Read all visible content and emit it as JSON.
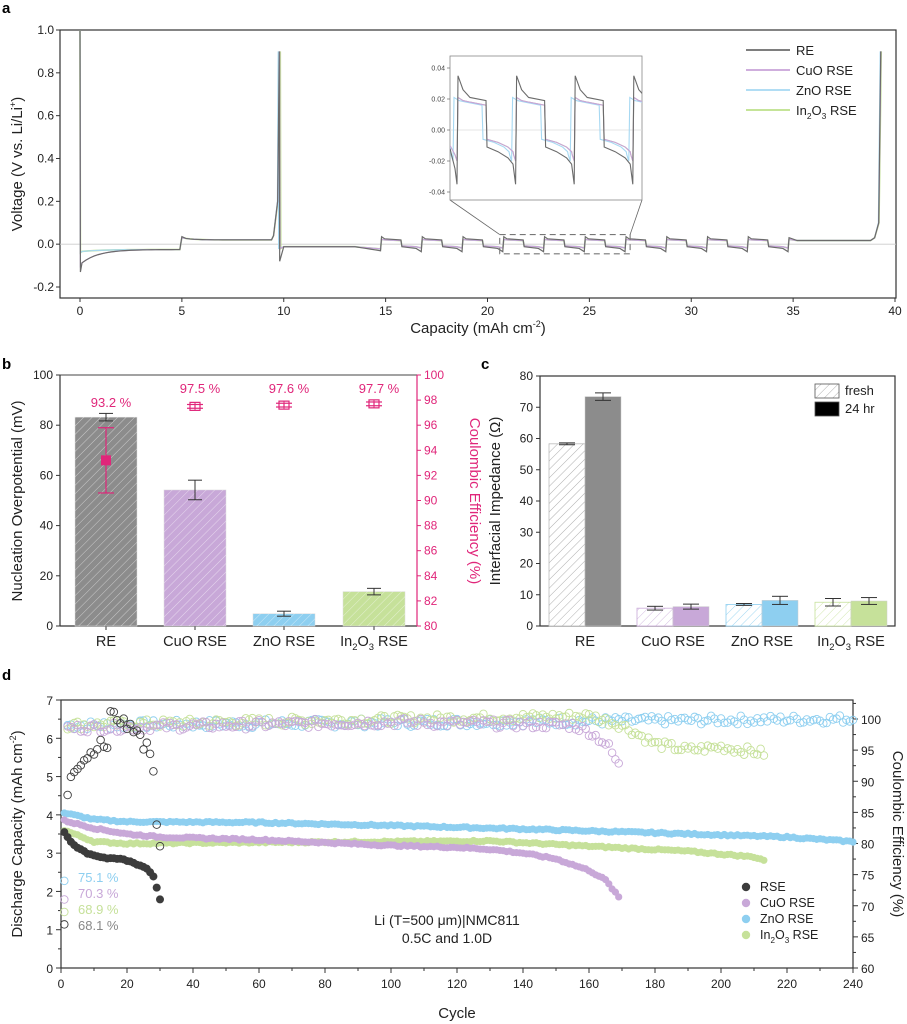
{
  "chart_data": [
    {
      "panel": "a",
      "type": "line",
      "xlabel": "Capacity (mAh cm-2)",
      "ylabel": "Voltage (V vs. Li/Li+)",
      "xlim": [
        -1,
        40
      ],
      "ylim": [
        -0.25,
        1.0
      ],
      "xticks": [
        0,
        5,
        10,
        15,
        20,
        25,
        30,
        35,
        40
      ],
      "yticks": [
        -0.2,
        0.0,
        0.2,
        0.4,
        0.6,
        0.8,
        1.0
      ],
      "ytick_labels": [
        "-0.2",
        "0.0",
        "0.2",
        "0.4",
        "0.6",
        "0.8",
        "1.0"
      ],
      "legend": {
        "placement": "top-right",
        "entries": [
          {
            "name": "RE",
            "color": "#6b6b6b"
          },
          {
            "name": "CuO RSE",
            "color": "#c8a2d8"
          },
          {
            "name": "ZnO RSE",
            "color": "#a6d8f2"
          },
          {
            "name": "In2O3 RSE",
            "color": "#bde08a"
          }
        ]
      },
      "profile_description": "Initial spike to 1.0 V at 0, plating at ~-0.03 V (RE dip to -0.13 V) until 5, stripping at ~+0.02 V until ~9.8 with spike to 0.9 V, plating until 14.8, then alternating 1 mAh cm-2 strip/plate steps between 14.8 and 34.8, then stripping until ~39.4 with spike to 0.9 V",
      "segments": [
        {
          "x": [
            0,
            5
          ],
          "v": -0.03,
          "RE_start": -0.13
        },
        {
          "x": [
            5,
            9.8
          ],
          "v": 0.02,
          "end_spike": 0.9
        },
        {
          "x": [
            9.8,
            14.8
          ],
          "v": -0.015
        },
        {
          "x": [
            14.8,
            34.8
          ],
          "alternating_v": [
            0.02,
            -0.01
          ],
          "step": 1.0
        },
        {
          "x": [
            34.8,
            39.4
          ],
          "v": 0.02,
          "end_spike": 0.9
        }
      ],
      "zoom_box": {
        "x": [
          20.6,
          27.0
        ],
        "y": [
          -0.045,
          0.045
        ]
      },
      "inset": {
        "yticks": [
          -0.04,
          -0.02,
          0.0,
          0.02,
          0.04
        ],
        "ytick_labels": [
          "-0.04",
          "-0.02",
          "0.00",
          "0.02",
          "0.04"
        ],
        "RE": {
          "strip_peak": 0.035,
          "strip_plateau": 0.02,
          "plate_plateau": -0.012,
          "plate_dip": -0.035
        },
        "others": {
          "strip_plateau": 0.018,
          "plate_plateau": -0.008,
          "plate_dip": -0.018
        }
      }
    },
    {
      "panel": "b",
      "type": "bar",
      "categories": [
        "RE",
        "CuO RSE",
        "ZnO RSE",
        "In2O3 RSE"
      ],
      "category_labels": [
        {
          "main": "RE",
          "sub": "",
          "tail": ""
        },
        {
          "main": "CuO RSE",
          "sub": "",
          "tail": ""
        },
        {
          "main": "ZnO RSE",
          "sub": "",
          "tail": ""
        },
        {
          "main": "In",
          "sub": "2",
          "mid": "O",
          "sub2": "3",
          "tail": " RSE"
        }
      ],
      "series": [
        {
          "name": "Nucleation Overpotential (mV)",
          "axis": "left",
          "values": [
            83.2,
            54.2,
            4.9,
            13.7
          ],
          "errors": [
            1.5,
            3.9,
            1.0,
            1.3
          ],
          "colors": [
            "#8c8c8c",
            "#c8a8d8",
            "#8ecff0",
            "#c6e19a"
          ]
        },
        {
          "name": "Coulombic Efficiency (%)",
          "axis": "right",
          "values": [
            93.2,
            97.5,
            97.6,
            97.7
          ],
          "errors": [
            2.6,
            0.15,
            0.15,
            0.15
          ],
          "color": "#e0267a",
          "data_labels": [
            "93.2 %",
            "97.5 %",
            "97.6 %",
            "97.7 %"
          ]
        }
      ],
      "ylabel": "Nucleation Overpotential (mV)",
      "y2label": "Coulombic Efficiency (%)",
      "ylim": [
        0,
        100
      ],
      "y2lim": [
        80,
        100
      ],
      "yticks": [
        0,
        20,
        40,
        60,
        80,
        100
      ],
      "y2ticks": [
        80,
        82,
        84,
        86,
        88,
        90,
        92,
        94,
        96,
        98,
        100
      ]
    },
    {
      "panel": "c",
      "type": "bar",
      "categories": [
        "RE",
        "CuO RSE",
        "ZnO RSE",
        "In2O3 RSE"
      ],
      "series": [
        {
          "name": "fresh",
          "values": [
            58.3,
            5.7,
            6.9,
            7.6
          ],
          "errors": [
            0.3,
            0.6,
            0.3,
            1.2
          ],
          "style": "hatched"
        },
        {
          "name": "24 hr",
          "values": [
            73.4,
            6.2,
            8.2,
            8.0
          ],
          "errors": [
            1.2,
            0.8,
            1.3,
            1.1
          ],
          "style": "solid"
        }
      ],
      "colors": [
        "#8c8c8c",
        "#c8a8d8",
        "#8ecff0",
        "#c6e19a"
      ],
      "ylabel": "Interfacial Impedance (Ω)",
      "ylim": [
        0,
        80
      ],
      "yticks": [
        0,
        10,
        20,
        30,
        40,
        50,
        60,
        70,
        80
      ],
      "legend": {
        "placement": "top-right",
        "entries": [
          {
            "name": "fresh",
            "swatch": "hatched"
          },
          {
            "name": "24 hr",
            "swatch": "solid"
          }
        ]
      }
    },
    {
      "panel": "d",
      "type": "scatter",
      "xlabel": "Cycle",
      "ylabel": "Discharge Capacity (mAh cm-2)",
      "y2label": "Coulombic Efficiency (%)",
      "xlim": [
        0,
        240
      ],
      "ylim": [
        0,
        7
      ],
      "y2lim": [
        60,
        103
      ],
      "xticks": [
        0,
        20,
        40,
        60,
        80,
        100,
        120,
        140,
        160,
        180,
        200,
        220,
        240
      ],
      "yticks": [
        0,
        1,
        2,
        3,
        4,
        5,
        6,
        7
      ],
      "y2ticks": [
        60,
        65,
        70,
        75,
        80,
        85,
        90,
        95,
        100
      ],
      "series": [
        {
          "name": "RSE",
          "color": "#3c3c3c",
          "last_cycle": 30,
          "capacity": [
            [
              1,
              3.55
            ],
            [
              3,
              3.3
            ],
            [
              5,
              3.15
            ],
            [
              8,
              3.0
            ],
            [
              12,
              2.9
            ],
            [
              15,
              2.85
            ],
            [
              18,
              2.85
            ],
            [
              21,
              2.78
            ],
            [
              24,
              2.68
            ],
            [
              26,
              2.6
            ],
            [
              27,
              2.5
            ],
            [
              28,
              2.4
            ],
            [
              29,
              2.1
            ],
            [
              30,
              1.8
            ]
          ],
          "ce": [
            [
              1,
              93
            ],
            [
              2,
              88
            ],
            [
              3,
              91
            ],
            [
              4,
              92
            ],
            [
              5,
              92.5
            ],
            [
              6,
              93
            ],
            [
              8,
              94
            ],
            [
              10,
              95
            ],
            [
              12,
              96
            ],
            [
              14,
              95.5
            ],
            [
              15,
              101
            ],
            [
              20,
              99
            ],
            [
              24,
              98
            ],
            [
              25,
              95
            ],
            [
              26,
              96
            ],
            [
              27,
              94.5
            ],
            [
              28,
              91
            ],
            [
              29,
              83.5
            ],
            [
              30,
              80
            ]
          ],
          "retention_label": "68.1 %",
          "first_ce": 67
        },
        {
          "name": "CuO RSE",
          "color": "#c8a8d8",
          "last_cycle": 169,
          "capacity": [
            [
              1,
              3.85
            ],
            [
              10,
              3.65
            ],
            [
              20,
              3.5
            ],
            [
              30,
              3.42
            ],
            [
              60,
              3.35
            ],
            [
              100,
              3.2
            ],
            [
              120,
              3.15
            ],
            [
              130,
              3.1
            ],
            [
              140,
              3.0
            ],
            [
              150,
              2.85
            ],
            [
              160,
              2.55
            ],
            [
              165,
              2.3
            ],
            [
              169,
              1.85
            ]
          ],
          "ce": [
            [
              1,
              98.5
            ],
            [
              100,
              99.5
            ],
            [
              155,
              99
            ],
            [
              160,
              98
            ],
            [
              164,
              96.5
            ],
            [
              166,
              95.5
            ],
            [
              168,
              93.5
            ],
            [
              169,
              92.5
            ]
          ],
          "retention_label": "70.3 %",
          "first_ce": 71
        },
        {
          "name": "ZnO RSE",
          "color": "#8ecff0",
          "last_cycle": 240,
          "capacity": [
            [
              1,
              4.05
            ],
            [
              10,
              3.88
            ],
            [
              20,
              3.82
            ],
            [
              60,
              3.8
            ],
            [
              100,
              3.72
            ],
            [
              140,
              3.63
            ],
            [
              180,
              3.53
            ],
            [
              220,
              3.42
            ],
            [
              240,
              3.3
            ]
          ],
          "ce": [
            [
              1,
              99
            ],
            [
              240,
              100
            ]
          ],
          "retention_label": "75.1 %",
          "first_ce": 74
        },
        {
          "name": "In2O3 RSE",
          "color": "#c6e19a",
          "last_cycle": 213,
          "capacity": [
            [
              1,
              3.6
            ],
            [
              10,
              3.3
            ],
            [
              20,
              3.25
            ],
            [
              60,
              3.28
            ],
            [
              100,
              3.3
            ],
            [
              130,
              3.32
            ],
            [
              160,
              3.18
            ],
            [
              190,
              3.05
            ],
            [
              210,
              2.9
            ],
            [
              213,
              2.82
            ]
          ],
          "ce": [
            [
              1,
              99
            ],
            [
              160,
              100.5
            ],
            [
              170,
              99
            ],
            [
              180,
              96
            ],
            [
              190,
              95
            ],
            [
              200,
              95.5
            ],
            [
              213,
              94.5
            ]
          ],
          "retention_label": "68.9 %",
          "first_ce": 69
        }
      ],
      "annotations": [
        "Li (T=500 μm)|NMC811",
        "0.5C and 1.0D"
      ],
      "legend": {
        "placement": "bottom-right",
        "entries": [
          "RSE",
          "CuO RSE",
          "ZnO RSE",
          "In2O3 RSE"
        ]
      }
    }
  ],
  "labels": {
    "panel_a": "a",
    "panel_b": "b",
    "panel_c": "c",
    "panel_d": "d",
    "a_xlabel_main": "Capacity (mAh cm",
    "a_xlabel_sup": "-2",
    "a_xlabel_end": ")",
    "a_ylabel_main": "Voltage (V vs. Li/Li",
    "a_ylabel_sup": "+",
    "a_ylabel_end": ")",
    "legend_sub_in": "In",
    "legend_sub_2": "2",
    "legend_sub_o": "O",
    "legend_sub_3": "3",
    "legend_sub_rse": " RSE",
    "b_ylabel": "Nucleation Overpotential (mV)",
    "b_y2label": "Coulombic Efficiency (%)",
    "c_ylabel": "Interfacial Impedance (Ω)",
    "d_ylabel_main": "Discharge Capacity (mAh cm",
    "d_ylabel_sup": "-2",
    "d_ylabel_end": ")",
    "d_y2label": "Coulombic Efficiency (%)",
    "d_xlabel": "Cycle"
  }
}
